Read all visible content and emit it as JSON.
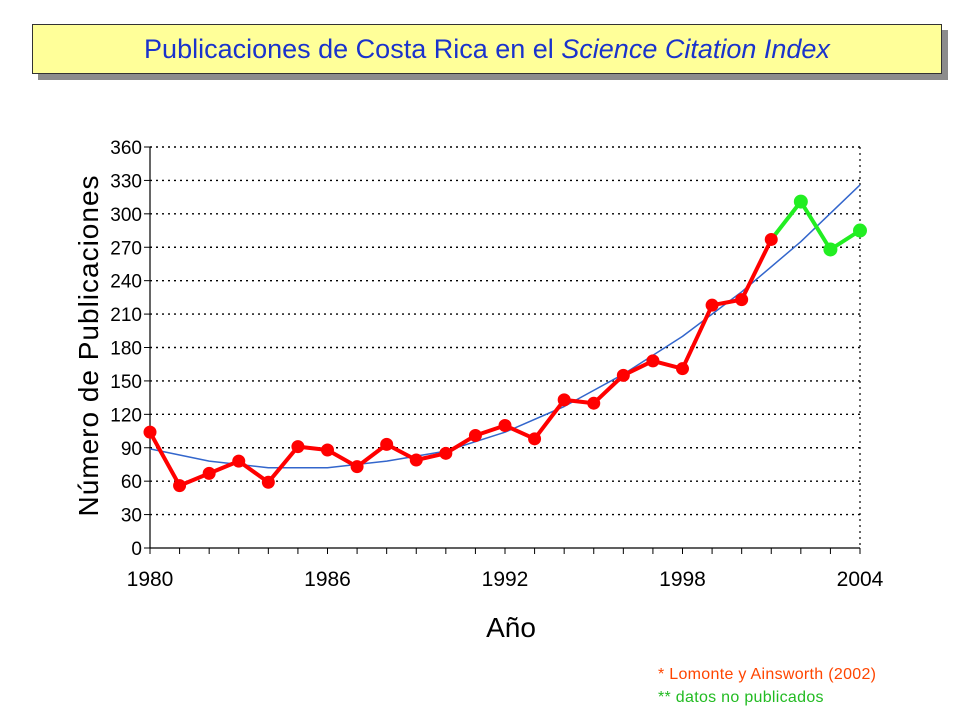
{
  "title": {
    "part1": "Publicaciones de Costa Rica en el ",
    "part2": "Science Citation Index"
  },
  "notes": {
    "note1": "* Lomonte y Ainsworth (2002)",
    "note2": "** datos no publicados"
  },
  "colors": {
    "published": "#ff0000",
    "unpublished": "#22ee22",
    "trend": "#3366cc",
    "title_text": "#1a33cc",
    "title_bg": "#ffff99"
  },
  "chart_data": {
    "type": "line",
    "xlabel": "Año",
    "ylabel": "Número de Publicaciones",
    "xlim": [
      1980,
      2004
    ],
    "ylim": [
      0,
      360
    ],
    "x_ticks": [
      "1980",
      "1986",
      "1992",
      "1998",
      "2004"
    ],
    "y_ticks": [
      "0",
      "30",
      "60",
      "90",
      "120",
      "150",
      "180",
      "210",
      "240",
      "270",
      "300",
      "330",
      "360"
    ],
    "grid": "horizontal dotted",
    "series": [
      {
        "x": [
          1980,
          1981,
          1982,
          1983,
          1984,
          1985,
          1986,
          1987,
          1988,
          1989,
          1990,
          1991,
          1992,
          1993,
          1994,
          1995,
          1996,
          1997,
          1998,
          1999,
          2000,
          2001
        ],
        "values": [
          104,
          56,
          67,
          78,
          59,
          91,
          88,
          73,
          93,
          79,
          85,
          101,
          110,
          98,
          133,
          130,
          155,
          168,
          161,
          218,
          223,
          277
        ]
      },
      {
        "x": [
          2001,
          2002,
          2003,
          2004
        ],
        "values": [
          277,
          311,
          268,
          285
        ]
      },
      {
        "x": [
          1980,
          1982,
          1984,
          1986,
          1988,
          1990,
          1992,
          1994,
          1996,
          1998,
          2000,
          2002,
          2004
        ],
        "values": [
          89,
          78,
          72,
          72,
          78,
          87,
          104,
          127,
          156,
          190,
          230,
          275,
          326
        ]
      }
    ]
  }
}
